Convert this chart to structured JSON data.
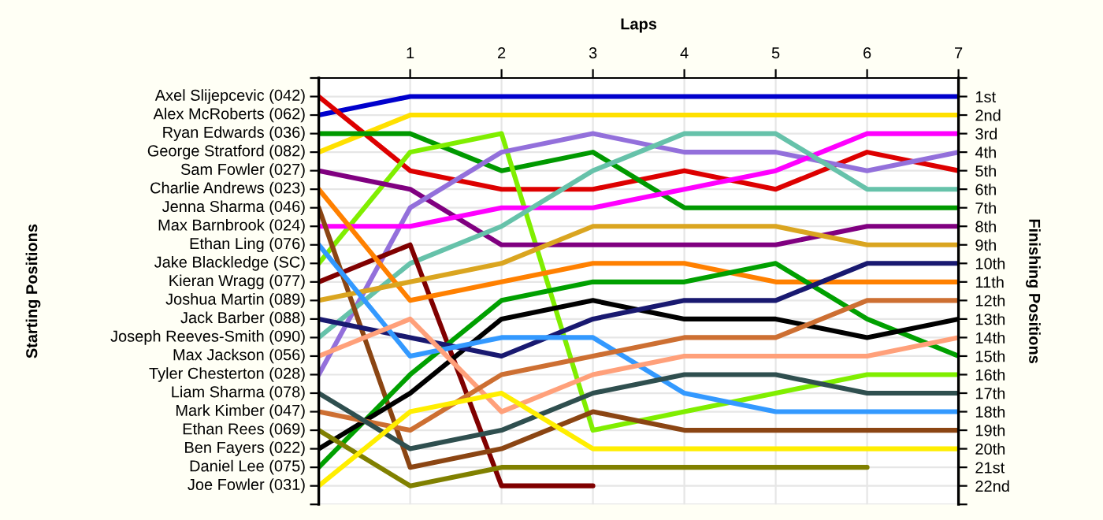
{
  "chart_data": {
    "type": "line",
    "xlabel": "Laps",
    "ylabel": "Finishing Positions",
    "x": [
      0,
      1,
      2,
      3,
      4,
      5,
      6,
      7
    ],
    "xlim": [
      0,
      7
    ],
    "xticks": [
      1,
      2,
      3,
      4,
      5,
      6,
      7
    ],
    "ylim": [
      23,
      0
    ],
    "yticks": [
      {
        "value": 0,
        "label": null
      },
      {
        "value": 1,
        "label": "1st"
      },
      {
        "value": 2,
        "label": "2nd"
      },
      {
        "value": 3,
        "label": "3rd"
      },
      {
        "value": 4,
        "label": "4th"
      },
      {
        "value": 5,
        "label": "5th"
      },
      {
        "value": 6,
        "label": "6th"
      },
      {
        "value": 7,
        "label": "7th"
      },
      {
        "value": 8,
        "label": "8th"
      },
      {
        "value": 9,
        "label": "9th"
      },
      {
        "value": 10,
        "label": "10th"
      },
      {
        "value": 11,
        "label": "11th"
      },
      {
        "value": 12,
        "label": "12th"
      },
      {
        "value": 13,
        "label": "13th"
      },
      {
        "value": 14,
        "label": "14th"
      },
      {
        "value": 15,
        "label": "15th"
      },
      {
        "value": 16,
        "label": "16th"
      },
      {
        "value": 17,
        "label": "17th"
      },
      {
        "value": 18,
        "label": "18th"
      },
      {
        "value": 19,
        "label": "19th"
      },
      {
        "value": 20,
        "label": "20th"
      },
      {
        "value": 21,
        "label": "21st"
      },
      {
        "value": 22,
        "label": "22nd"
      },
      {
        "value": 23,
        "label": null
      }
    ],
    "annotations": [
      "Starting Positions",
      "Axel Slijepcevic (042)",
      "Alex McRoberts (062)",
      "Ryan Edwards (036)",
      "George Stratford (082)",
      "Sam Fowler (027)",
      "Charlie Andrews (023)",
      "Jenna Sharma (046)",
      "Max Barnbrook (024)",
      "Ethan Ling (076)",
      "Jake Blackledge (SC)",
      "Kieran Wragg (077)",
      "Joshua Martin (089)",
      "Jack Barber (088)",
      "Joseph Reeves-Smith (090)",
      "Max Jackson (056)",
      "Tyler Chesterton (028)",
      "Liam Sharma (078)",
      "Mark Kimber (047)",
      "Ethan Rees (069)",
      "Ben Fayers (022)",
      "Daniel Lee (075)",
      "Joe Fowler (031)"
    ],
    "grid": true,
    "marker": "none",
    "line_style": "solid",
    "series": [
      {
        "color": "#0000cc",
        "values": [
          2,
          1,
          1,
          1,
          1,
          1,
          1,
          1
        ]
      },
      {
        "color": "#dd0000",
        "values": [
          1,
          5,
          6,
          6,
          5,
          6,
          4,
          5
        ]
      },
      {
        "color": "#ffe000",
        "values": [
          4,
          2,
          2,
          2,
          2,
          2,
          2,
          2
        ]
      },
      {
        "color": "#009900",
        "values": [
          3,
          3,
          5,
          4,
          7,
          7,
          7,
          7
        ]
      },
      {
        "color": "#80ee00",
        "values": [
          10,
          4,
          3,
          19,
          18,
          17,
          16,
          16
        ]
      },
      {
        "color": "#800080",
        "values": [
          5,
          6,
          9,
          9,
          9,
          9,
          8,
          8
        ]
      },
      {
        "color": "#9370db",
        "values": [
          16,
          7,
          4,
          3,
          4,
          4,
          5,
          4
        ]
      },
      {
        "color": "#ff00ff",
        "values": [
          8,
          8,
          7,
          7,
          6,
          5,
          3,
          3
        ]
      },
      {
        "color": "#66c2aa",
        "values": [
          14,
          10,
          8,
          5,
          3,
          3,
          6,
          6
        ]
      },
      {
        "color": "#800000",
        "values": [
          11,
          9,
          22,
          22,
          null,
          null,
          null,
          null
        ]
      },
      {
        "color": "#8b4513",
        "values": [
          7,
          21,
          20,
          18,
          19,
          19,
          19,
          19
        ]
      },
      {
        "color": "#ff8000",
        "values": [
          6,
          12,
          11,
          10,
          10,
          11,
          11,
          11
        ]
      },
      {
        "color": "#daa520",
        "values": [
          12,
          11,
          10,
          8,
          8,
          8,
          9,
          9
        ]
      },
      {
        "color": "#00a000",
        "values": [
          21,
          16,
          12,
          11,
          11,
          10,
          13,
          15
        ]
      },
      {
        "color": "#000000",
        "values": [
          20,
          17,
          13,
          12,
          13,
          13,
          14,
          13
        ]
      },
      {
        "color": "#191970",
        "values": [
          13,
          14,
          15,
          13,
          12,
          12,
          10,
          10
        ]
      },
      {
        "color": "#3399ff",
        "values": [
          9,
          15,
          14,
          14,
          17,
          18,
          18,
          18
        ]
      },
      {
        "color": "#ffa07a",
        "values": [
          15,
          13,
          18,
          16,
          15,
          15,
          15,
          14
        ]
      },
      {
        "color": "#cd6f32",
        "values": [
          18,
          19,
          16,
          15,
          14,
          14,
          12,
          12
        ]
      },
      {
        "color": "#2f4f4f",
        "values": [
          17,
          20,
          19,
          17,
          16,
          16,
          17,
          17
        ]
      },
      {
        "color": "#808000",
        "values": [
          19,
          22,
          21,
          21,
          21,
          21,
          21,
          null
        ]
      },
      {
        "color": "#ffee00",
        "values": [
          22,
          18,
          17,
          20,
          20,
          20,
          20,
          20
        ]
      }
    ]
  }
}
